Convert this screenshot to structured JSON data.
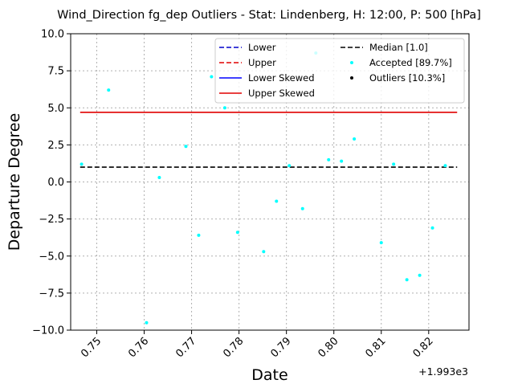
{
  "chart_data": {
    "type": "scatter",
    "title": "Wind_Direction fg_dep Outliers - Stat: Lindenberg, H: 12:00, P: 500 [hPa]",
    "xlabel": "Date",
    "ylabel": "Departure Degree",
    "x_offset_label": "+1.993e3",
    "xlim": [
      0.7445,
      0.8285
    ],
    "ylim": [
      -10.0,
      10.0
    ],
    "grid": true,
    "legend_placement": "top-right",
    "x_ticks": [
      0.75,
      0.76,
      0.77,
      0.78,
      0.79,
      0.8,
      0.81,
      0.82
    ],
    "x_tick_labels": [
      "0.75",
      "0.76",
      "0.77",
      "0.78",
      "0.79",
      "0.80",
      "0.81",
      "0.82"
    ],
    "y_ticks": [
      -10.0,
      -7.5,
      -5.0,
      -2.5,
      0.0,
      2.5,
      5.0,
      7.5,
      10.0
    ],
    "y_tick_labels": [
      "−10.0",
      "−7.5",
      "−5.0",
      "−2.5",
      "0.0",
      "2.5",
      "5.0",
      "7.5",
      "10.0"
    ],
    "lines": [
      {
        "name": "Upper Skewed",
        "y": 4.7,
        "x_range": [
          0.7465,
          0.826
        ],
        "color": "#e00000",
        "dash": "solid"
      },
      {
        "name": "Median [1.0]",
        "y": 1.0,
        "x_range": [
          0.7465,
          0.826
        ],
        "color": "#000000",
        "dash": "dashed"
      }
    ],
    "series": [
      {
        "name": "Accepted [89.7%]",
        "color": "#00ffff",
        "points": [
          [
            0.7468,
            1.2
          ],
          [
            0.7525,
            6.2
          ],
          [
            0.7605,
            -9.5
          ],
          [
            0.7632,
            0.3
          ],
          [
            0.7688,
            2.4
          ],
          [
            0.7715,
            -3.6
          ],
          [
            0.7742,
            7.1
          ],
          [
            0.777,
            5.0
          ],
          [
            0.7797,
            -3.4
          ],
          [
            0.7852,
            -4.7
          ],
          [
            0.7879,
            -1.3
          ],
          [
            0.7906,
            1.1
          ],
          [
            0.7934,
            -1.8
          ],
          [
            0.7962,
            8.7
          ],
          [
            0.7989,
            1.5
          ],
          [
            0.8016,
            1.4
          ],
          [
            0.8043,
            2.9
          ],
          [
            0.81,
            -4.1
          ],
          [
            0.8126,
            1.2
          ],
          [
            0.8154,
            -6.6
          ],
          [
            0.8181,
            -6.3
          ],
          [
            0.8208,
            -3.1
          ],
          [
            0.8235,
            1.1
          ]
        ]
      },
      {
        "name": "Outliers [10.3%]",
        "color": "#000000",
        "points": []
      }
    ],
    "legend": {
      "left": [
        {
          "label": "Lower",
          "kind": "line",
          "color": "#0000cc",
          "dash": "dashed"
        },
        {
          "label": "Upper",
          "kind": "line",
          "color": "#e00000",
          "dash": "dashed"
        },
        {
          "label": "Lower Skewed",
          "kind": "line",
          "color": "#0000ff",
          "dash": "solid"
        },
        {
          "label": "Upper Skewed",
          "kind": "line",
          "color": "#e00000",
          "dash": "solid"
        }
      ],
      "right": [
        {
          "label": "Median [1.0]",
          "kind": "line",
          "color": "#000000",
          "dash": "dashed"
        },
        {
          "label": "Accepted [89.7%]",
          "kind": "dot",
          "color": "#00ffff"
        },
        {
          "label": "Outliers [10.3%]",
          "kind": "dot",
          "color": "#000000"
        }
      ]
    }
  }
}
